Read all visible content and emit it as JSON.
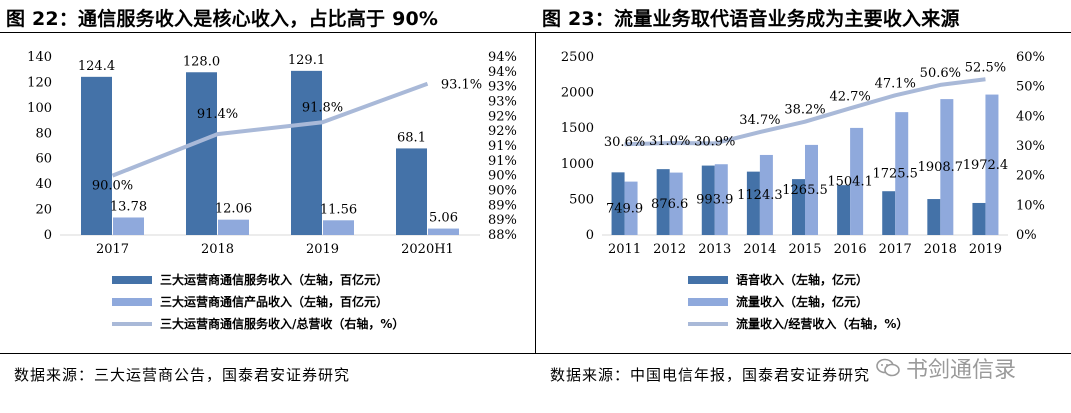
{
  "left": {
    "title": "图 22：通信服务收入是核心收入，占比高于 90%",
    "source": "数据来源：三大运营商公告，国泰君安证券研究"
  },
  "right": {
    "title": "图 23：流量业务取代语音业务成为主要收入来源",
    "source": "数据来源：中国电信年报，国泰君安证券研究"
  },
  "watermark": "书剑通信录",
  "chart_data": [
    {
      "type": "bar",
      "title": "图 22：通信服务收入是核心收入，占比高于 90%",
      "categories": [
        "2017",
        "2018",
        "2019",
        "2020H1"
      ],
      "ylim_left": [
        0,
        140
      ],
      "yticks_left": [
        "0",
        "20",
        "40",
        "60",
        "80",
        "100",
        "120",
        "140"
      ],
      "ylim_right": [
        88,
        94
      ],
      "yticks_right": [
        "88%",
        "89%",
        "89%",
        "90%",
        "90%",
        "91%",
        "91%",
        "92%",
        "92%",
        "93%",
        "93%",
        "94%",
        "94%"
      ],
      "series": [
        {
          "name": "三大运营商通信服务收入（左轴，百亿元）",
          "type": "bar",
          "axis": "left",
          "color": "#4472a8",
          "values": [
            124.4,
            128.0,
            129.1,
            68.1
          ],
          "labels": [
            "124.4",
            "128.0",
            "129.1",
            "68.1"
          ]
        },
        {
          "name": "三大运营商通信产品收入（左轴，百亿元）",
          "type": "bar",
          "axis": "left",
          "color": "#8fa9dc",
          "values": [
            13.78,
            12.06,
            11.56,
            5.06
          ],
          "labels": [
            "13.78",
            "12.06",
            "11.56",
            "5.06"
          ]
        },
        {
          "name": "三大运营商通信服务收入/总营收（右轴，%）",
          "type": "line",
          "axis": "right",
          "color": "#a9b9d8",
          "values": [
            90.0,
            91.4,
            91.8,
            93.1
          ],
          "labels": [
            "90.0%",
            "91.4%",
            "91.8%",
            "93.1%"
          ]
        }
      ],
      "legend_position": "bottom"
    },
    {
      "type": "bar",
      "title": "图 23：流量业务取代语音业务成为主要收入来源",
      "categories": [
        "2011",
        "2012",
        "2013",
        "2014",
        "2015",
        "2016",
        "2017",
        "2018",
        "2019"
      ],
      "ylim_left": [
        0,
        2500
      ],
      "yticks_left": [
        "0",
        "500",
        "1000",
        "1500",
        "2000",
        "2500"
      ],
      "ylim_right": [
        0,
        60
      ],
      "yticks_right": [
        "0%",
        "10%",
        "20%",
        "30%",
        "40%",
        "50%",
        "60%"
      ],
      "series": [
        {
          "name": "语音收入（左轴，亿元）",
          "type": "bar",
          "axis": "left",
          "color": "#4472a8",
          "values": [
            880,
            925,
            975,
            890,
            785,
            700,
            615,
            505,
            450
          ]
        },
        {
          "name": "流量收入（左轴，亿元）",
          "type": "bar",
          "axis": "left",
          "color": "#8fa9dc",
          "values": [
            749.9,
            876.6,
            993.9,
            1124.3,
            1265.5,
            1504.1,
            1725.5,
            1908.7,
            1972.4
          ],
          "labels": [
            "749.9",
            "876.6",
            "993.9",
            "1124.3",
            "1265.5",
            "1504.1",
            "1725.5",
            "1908.7",
            "1972.4"
          ]
        },
        {
          "name": "流量收入/经营收入（右轴，%）",
          "type": "line",
          "axis": "right",
          "color": "#a9b9d8",
          "values": [
            30.6,
            31.0,
            30.9,
            34.7,
            38.2,
            42.7,
            47.1,
            50.6,
            52.5
          ],
          "labels": [
            "30.6%",
            "31.0%",
            "30.9%",
            "34.7%",
            "38.2%",
            "42.7%",
            "47.1%",
            "50.6%",
            "52.5%"
          ]
        }
      ],
      "legend_position": "bottom"
    }
  ]
}
